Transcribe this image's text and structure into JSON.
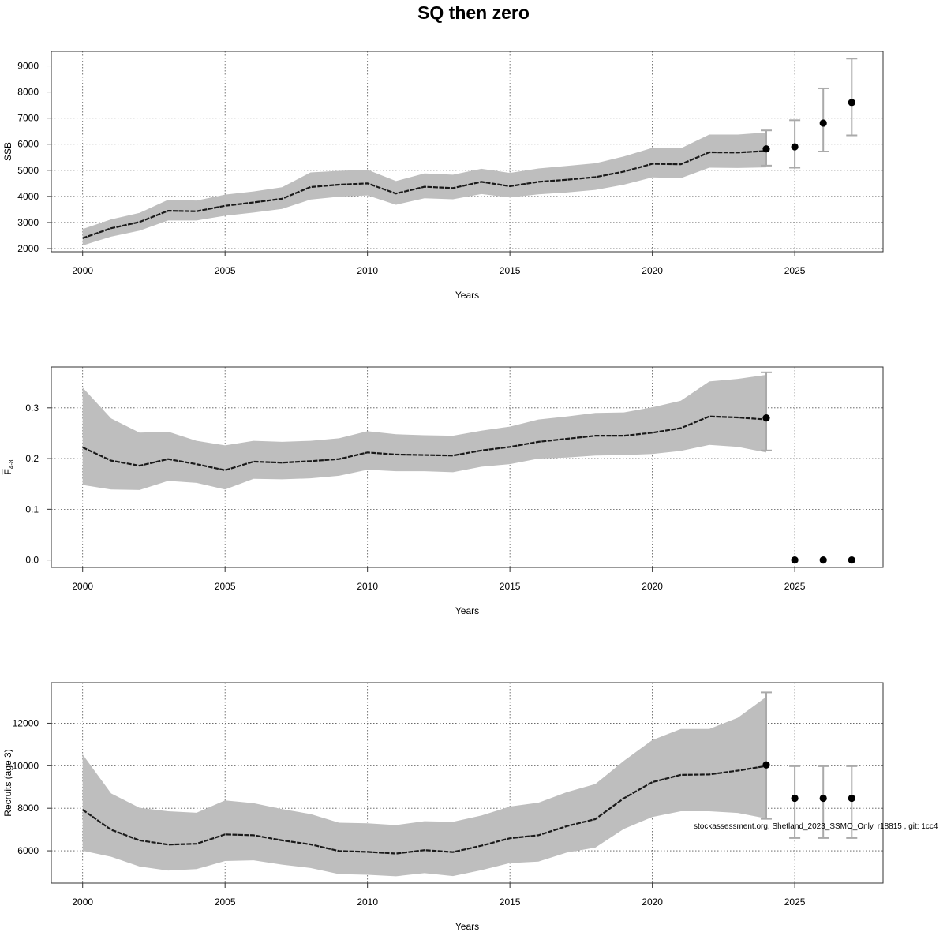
{
  "page": {
    "title": "SQ then zero"
  },
  "footnote": "stockassessment.org, Shetland_2023_SSMO_Only, r18815 , git: 1cc4",
  "colors": {
    "band": "#bebebe",
    "line": "#1a1a1a",
    "errorbar": "#aaaaaa",
    "point": "#000000"
  },
  "chart_data": [
    {
      "type": "line",
      "name": "ssb-panel",
      "xlabel": "Years",
      "ylabel": "SSB",
      "ylabel_sub": "",
      "xlim": [
        1998.9,
        2028.1
      ],
      "ylim": [
        1880,
        9560
      ],
      "xticks": [
        2000,
        2005,
        2010,
        2015,
        2020,
        2025
      ],
      "yticks": [
        2000,
        3000,
        4000,
        5000,
        6000,
        7000,
        8000,
        9000
      ],
      "grid": true,
      "x": [
        2000,
        2001,
        2002,
        2003,
        2004,
        2005,
        2006,
        2007,
        2008,
        2009,
        2010,
        2011,
        2012,
        2013,
        2014,
        2015,
        2016,
        2017,
        2018,
        2019,
        2020,
        2021,
        2022,
        2023,
        2024
      ],
      "estimate": [
        2400,
        2780,
        3020,
        3450,
        3430,
        3640,
        3770,
        3910,
        4360,
        4450,
        4500,
        4110,
        4370,
        4320,
        4560,
        4390,
        4560,
        4640,
        4740,
        4950,
        5250,
        5230,
        5690,
        5680,
        5740
      ],
      "lower": [
        2120,
        2460,
        2690,
        3080,
        3080,
        3260,
        3380,
        3520,
        3880,
        3990,
        4040,
        3680,
        3930,
        3890,
        4090,
        3960,
        4080,
        4150,
        4250,
        4450,
        4730,
        4700,
        5100,
        5090,
        5110
      ],
      "upper": [
        2750,
        3120,
        3370,
        3870,
        3840,
        4070,
        4190,
        4350,
        4920,
        4980,
        5020,
        4590,
        4880,
        4830,
        5060,
        4900,
        5070,
        5170,
        5270,
        5530,
        5860,
        5840,
        6370,
        6370,
        6450
      ],
      "points": [
        {
          "x": 2024,
          "y": 5820,
          "low": 5180,
          "high": 6530
        },
        {
          "x": 2025,
          "y": 5900,
          "low": 5100,
          "high": 6920
        },
        {
          "x": 2026,
          "y": 6810,
          "low": 5720,
          "high": 8140
        },
        {
          "x": 2027,
          "y": 7600,
          "low": 6340,
          "high": 9280
        }
      ]
    },
    {
      "type": "line",
      "name": "fbar-panel",
      "xlabel": "Years",
      "ylabel": "F",
      "ylabel_sub": "4-8",
      "xlim": [
        1998.9,
        2028.1
      ],
      "ylim": [
        -0.0146,
        0.3806
      ],
      "xticks": [
        2000,
        2005,
        2010,
        2015,
        2020,
        2025
      ],
      "yticks": [
        "0.0",
        "0.1",
        "0.2",
        "0.3"
      ],
      "grid": true,
      "x": [
        2000,
        2001,
        2002,
        2003,
        2004,
        2005,
        2006,
        2007,
        2008,
        2009,
        2010,
        2011,
        2012,
        2013,
        2014,
        2015,
        2016,
        2017,
        2018,
        2019,
        2020,
        2021,
        2022,
        2023,
        2024
      ],
      "estimate": [
        0.222,
        0.196,
        0.186,
        0.199,
        0.189,
        0.177,
        0.194,
        0.192,
        0.195,
        0.199,
        0.212,
        0.208,
        0.207,
        0.206,
        0.216,
        0.223,
        0.233,
        0.239,
        0.245,
        0.245,
        0.251,
        0.26,
        0.283,
        0.281,
        0.277
      ],
      "lower": [
        0.148,
        0.139,
        0.138,
        0.156,
        0.152,
        0.139,
        0.16,
        0.159,
        0.161,
        0.166,
        0.178,
        0.175,
        0.175,
        0.173,
        0.184,
        0.189,
        0.2,
        0.202,
        0.206,
        0.207,
        0.209,
        0.215,
        0.227,
        0.223,
        0.212
      ],
      "upper": [
        0.34,
        0.279,
        0.251,
        0.253,
        0.235,
        0.226,
        0.235,
        0.233,
        0.235,
        0.24,
        0.254,
        0.248,
        0.246,
        0.245,
        0.255,
        0.263,
        0.277,
        0.283,
        0.29,
        0.291,
        0.301,
        0.314,
        0.352,
        0.357,
        0.365
      ],
      "points": [
        {
          "x": 2024,
          "y": 0.28,
          "low": 0.216,
          "high": 0.37
        },
        {
          "x": 2025,
          "y": 0.0
        },
        {
          "x": 2026,
          "y": 0.0
        },
        {
          "x": 2027,
          "y": 0.0
        }
      ]
    },
    {
      "type": "line",
      "name": "recruits-panel",
      "xlabel": "Years",
      "ylabel": "Recruits (age 3)",
      "ylabel_sub": "",
      "xlim": [
        1998.9,
        2028.1
      ],
      "ylim": [
        4480,
        13910
      ],
      "xticks": [
        2000,
        2005,
        2010,
        2015,
        2020,
        2025
      ],
      "yticks": [
        6000,
        8000,
        10000,
        12000
      ],
      "grid": true,
      "x": [
        2000,
        2001,
        2002,
        2003,
        2004,
        2005,
        2006,
        2007,
        2008,
        2009,
        2010,
        2011,
        2012,
        2013,
        2014,
        2015,
        2016,
        2017,
        2018,
        2019,
        2020,
        2021,
        2022,
        2023,
        2024
      ],
      "estimate": [
        7930,
        6990,
        6490,
        6290,
        6330,
        6770,
        6730,
        6490,
        6300,
        5990,
        5950,
        5870,
        6030,
        5940,
        6240,
        6590,
        6730,
        7160,
        7490,
        8470,
        9230,
        9570,
        9590,
        9770,
        9990
      ],
      "lower": [
        6000,
        5720,
        5260,
        5070,
        5140,
        5520,
        5550,
        5350,
        5190,
        4900,
        4870,
        4800,
        4950,
        4810,
        5090,
        5420,
        5490,
        5920,
        6150,
        7030,
        7590,
        7860,
        7860,
        7780,
        7520
      ],
      "upper": [
        10530,
        8700,
        8020,
        7860,
        7790,
        8370,
        8240,
        7960,
        7730,
        7320,
        7290,
        7210,
        7390,
        7360,
        7660,
        8080,
        8260,
        8760,
        9140,
        10230,
        11210,
        11730,
        11730,
        12260,
        13240
      ],
      "points": [
        {
          "x": 2024,
          "y": 10040,
          "low": 7500,
          "high": 13450
        },
        {
          "x": 2025,
          "y": 8470,
          "low": 6600,
          "high": 9980
        },
        {
          "x": 2026,
          "y": 8470,
          "low": 6600,
          "high": 9980
        },
        {
          "x": 2027,
          "y": 8470,
          "low": 6600,
          "high": 9980
        }
      ]
    }
  ]
}
